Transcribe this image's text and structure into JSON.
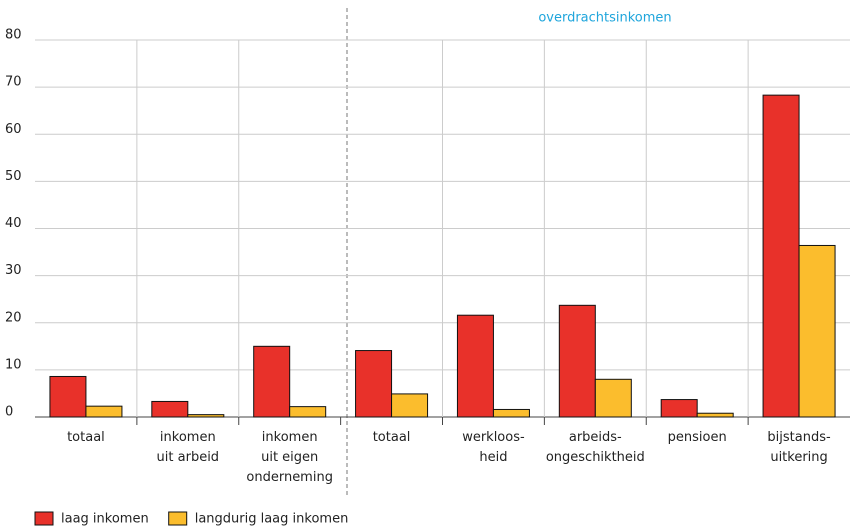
{
  "chart_data": {
    "type": "bar",
    "annotation": "overdrachtsinkomen",
    "categories": [
      "totaal",
      "inkomen\nuit arbeid",
      "inkomen\nuit eigen\nonderneming",
      "totaal",
      "werkloos-\nheid",
      "arbeids-\nongeschiktheid",
      "pensioen",
      "bijstands-\nuitkering"
    ],
    "series": [
      {
        "name": "laag inkomen",
        "color": "#e8312a",
        "values": [
          8.6,
          3.3,
          15.0,
          14.1,
          21.6,
          23.7,
          3.7,
          68.3
        ]
      },
      {
        "name": "langdurig laag inkomen",
        "color": "#fbbd2d",
        "values": [
          2.3,
          0.5,
          2.2,
          4.9,
          1.6,
          8.0,
          0.8,
          36.4
        ]
      }
    ],
    "ylim": [
      0,
      80
    ],
    "yticks": [
      0,
      10,
      20,
      30,
      40,
      50,
      60,
      70,
      80
    ],
    "grid": true
  }
}
